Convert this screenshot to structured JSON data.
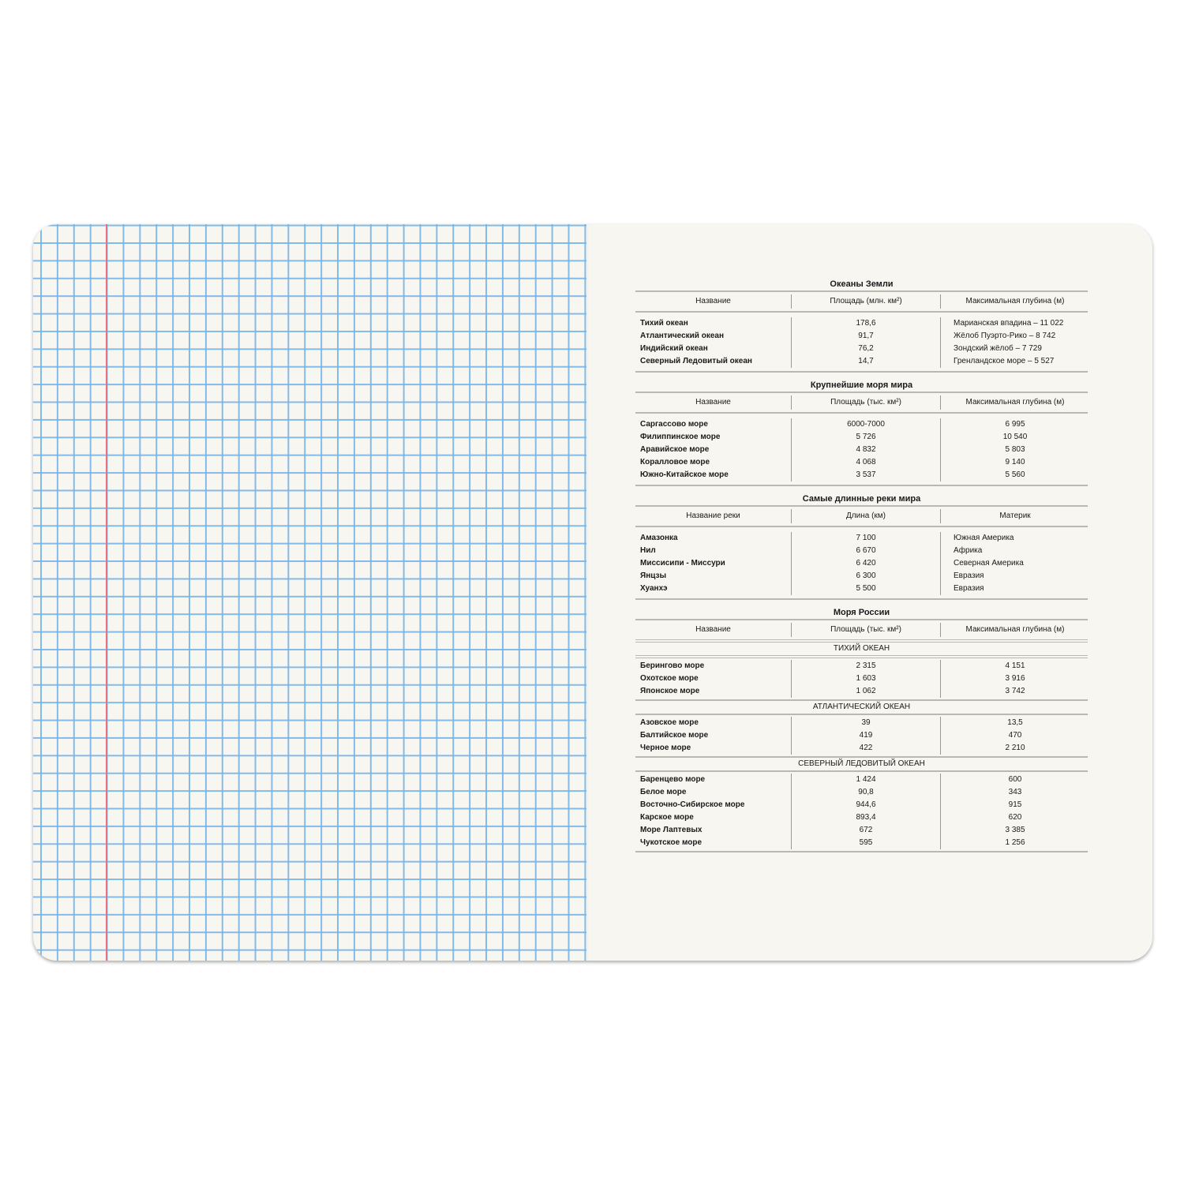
{
  "colors": {
    "grid": "#78b4e6",
    "margin": "#f0707a",
    "paper": "#f7f6f1"
  },
  "oceans": {
    "title": "Океаны Земли",
    "headers": [
      "Название",
      "Площадь (млн. км²)",
      "Максимальная глубина (м)"
    ],
    "rows": [
      [
        "Тихий океан",
        "178,6",
        "Марианская впадина – 11 022"
      ],
      [
        "Атлантический океан",
        "91,7",
        "Жёлоб Пуэрто-Рико – 8 742"
      ],
      [
        "Индийский океан",
        "76,2",
        "Зондский жёлоб – 7 729"
      ],
      [
        "Северный Ледовитый океан",
        "14,7",
        "Гренландское море – 5 527"
      ]
    ]
  },
  "seas": {
    "title": "Крупнейшие моря мира",
    "headers": [
      "Название",
      "Площадь (тыс. км²)",
      "Максимальная глубина (м)"
    ],
    "rows": [
      [
        "Саргассово море",
        "6000-7000",
        "6 995"
      ],
      [
        "Филиппинское море",
        "5 726",
        "10 540"
      ],
      [
        "Аравийское море",
        "4 832",
        "5 803"
      ],
      [
        "Коралловое море",
        "4 068",
        "9 140"
      ],
      [
        "Южно-Китайское море",
        "3 537",
        "5 560"
      ]
    ]
  },
  "rivers": {
    "title": "Самые длинные реки мира",
    "headers": [
      "Название реки",
      "Длина (км)",
      "Материк"
    ],
    "rows": [
      [
        "Амазонка",
        "7 100",
        "Южная Америка"
      ],
      [
        "Нил",
        "6 670",
        "Африка"
      ],
      [
        "Миссисипи - Миссури",
        "6 420",
        "Северная Америка"
      ],
      [
        "Янцзы",
        "6 300",
        "Евразия"
      ],
      [
        "Хуанхэ",
        "5 500",
        "Евразия"
      ]
    ]
  },
  "russia": {
    "title": "Моря России",
    "headers": [
      "Название",
      "Площадь (тыс. км²)",
      "Максимальная глубина (м)"
    ],
    "groups": [
      {
        "name": "ТИХИЙ ОКЕАН",
        "rows": [
          [
            "Берингово море",
            "2 315",
            "4 151"
          ],
          [
            "Охотское море",
            "1 603",
            "3 916"
          ],
          [
            "Японское море",
            "1 062",
            "3 742"
          ]
        ]
      },
      {
        "name": "АТЛАНТИЧЕСКИЙ ОКЕАН",
        "rows": [
          [
            "Азовское море",
            "39",
            "13,5"
          ],
          [
            "Балтийское море",
            "419",
            "470"
          ],
          [
            "Черное море",
            "422",
            "2 210"
          ]
        ]
      },
      {
        "name": "СЕВЕРНЫЙ ЛЕДОВИТЫЙ ОКЕАН",
        "rows": [
          [
            "Баренцево море",
            "1 424",
            "600"
          ],
          [
            "Белое море",
            "90,8",
            "343"
          ],
          [
            "Восточно-Сибирское море",
            "944,6",
            "915"
          ],
          [
            "Карское море",
            "893,4",
            "620"
          ],
          [
            "Море Лаптевых",
            "672",
            "3 385"
          ],
          [
            "Чукотское море",
            "595",
            "1 256"
          ]
        ]
      }
    ]
  }
}
